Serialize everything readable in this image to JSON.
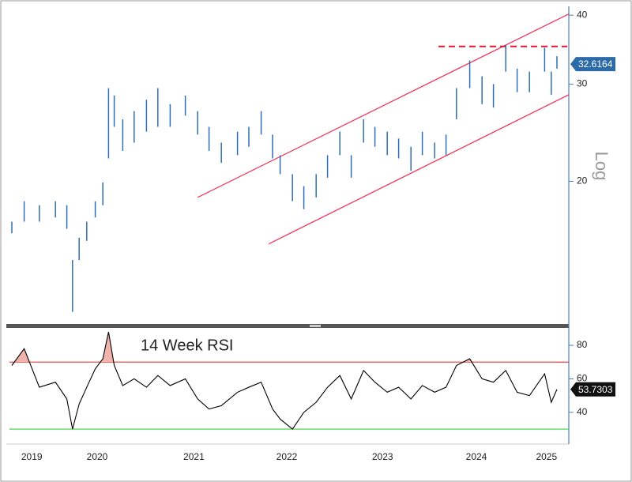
{
  "chart_data": [
    {
      "type": "range_bar",
      "y_scale": "log",
      "y_label": "Log",
      "x": [
        2019.6,
        2019.73,
        2019.89,
        2020.06,
        2020.18,
        2020.24,
        2020.31,
        2020.39,
        2020.48,
        2020.56,
        2020.62,
        2020.68,
        2020.77,
        2020.89,
        2021.02,
        2021.14,
        2021.27,
        2021.43,
        2021.56,
        2021.68,
        2021.81,
        2021.98,
        2022.1,
        2022.23,
        2022.35,
        2022.43,
        2022.56,
        2022.68,
        2022.81,
        2022.93,
        2023.06,
        2023.18,
        2023.31,
        2023.43,
        2023.56,
        2023.68,
        2023.81,
        2023.93,
        2024.06,
        2024.18,
        2024.29,
        2024.43,
        2024.56,
        2024.68,
        2024.81,
        2024.93,
        2025.06,
        2025.22,
        2025.29,
        2025.35
      ],
      "series": [
        {
          "color": "#2f6db5",
          "high": [
            16.9,
            18.4,
            18.1,
            18.4,
            18.1,
            14.4,
            15.8,
            16.9,
            18.4,
            19.9,
            29.5,
            28.6,
            25.9,
            26.8,
            28.1,
            29.5,
            27.6,
            28.6,
            26.8,
            25.1,
            23.5,
            24.6,
            25.1,
            26.8,
            24.3,
            22.3,
            20.6,
            19.6,
            20.6,
            22.3,
            24.6,
            22.3,
            25.9,
            25.1,
            24.6,
            23.9,
            23.1,
            24.6,
            23.5,
            24.3,
            29.5,
            33.1,
            31.0,
            30.0,
            35.3,
            32.0,
            31.6,
            34.9,
            31.6,
            33.7
          ],
          "low": [
            16.1,
            16.9,
            16.9,
            17.2,
            16.4,
            11.6,
            14.4,
            15.6,
            17.2,
            18.1,
            22.0,
            25.1,
            22.7,
            23.5,
            24.6,
            25.1,
            25.1,
            26.3,
            24.3,
            22.7,
            21.6,
            22.3,
            23.1,
            24.3,
            22.0,
            20.6,
            18.4,
            17.8,
            18.7,
            20.3,
            22.3,
            20.3,
            23.5,
            23.1,
            22.3,
            22.0,
            20.9,
            22.3,
            22.0,
            22.3,
            25.9,
            29.5,
            27.6,
            27.2,
            31.6,
            29.0,
            29.0,
            31.6,
            28.7,
            32.0
          ]
        }
      ],
      "last_value": 32.6164,
      "xlim": [
        2019.575,
        2025.475
      ],
      "ylim": [
        11.1,
        41.5
      ],
      "yticks": [
        20,
        30,
        40
      ],
      "lines": [
        {
          "color": "#f0385a",
          "dashed": false,
          "x": [
            2021.56,
            2025.475
          ],
          "y": [
            18.7,
            40.2
          ]
        },
        {
          "color": "#f0385a",
          "dashed": false,
          "x": [
            2022.31,
            2025.475
          ],
          "y": [
            15.4,
            28.7
          ]
        },
        {
          "color": "#e8152f",
          "dashed": true,
          "x": [
            2024.1,
            2025.46
          ],
          "y": [
            35.1,
            35.1
          ]
        }
      ]
    },
    {
      "type": "line",
      "title": "14 Week RSI",
      "x": [
        2019.6,
        2019.73,
        2019.89,
        2020.06,
        2020.18,
        2020.24,
        2020.31,
        2020.39,
        2020.48,
        2020.56,
        2020.62,
        2020.68,
        2020.77,
        2020.89,
        2021.02,
        2021.14,
        2021.27,
        2021.43,
        2021.56,
        2021.68,
        2021.81,
        2021.98,
        2022.1,
        2022.23,
        2022.35,
        2022.43,
        2022.56,
        2022.68,
        2022.81,
        2022.93,
        2023.06,
        2023.18,
        2023.31,
        2023.43,
        2023.56,
        2023.68,
        2023.81,
        2023.93,
        2024.06,
        2024.18,
        2024.29,
        2024.43,
        2024.56,
        2024.68,
        2024.81,
        2024.93,
        2025.06,
        2025.22,
        2025.29,
        2025.35
      ],
      "series": [
        {
          "color": "#000000",
          "values": [
            68,
            78,
            55,
            58,
            48,
            30,
            45,
            55,
            66,
            72,
            88,
            68,
            56,
            60,
            55,
            62,
            56,
            60,
            48,
            42,
            44,
            52,
            55,
            58,
            42,
            36,
            30,
            40,
            46,
            55,
            62,
            48,
            65,
            58,
            52,
            55,
            48,
            56,
            52,
            55,
            68,
            72,
            60,
            58,
            65,
            52,
            50,
            63,
            46,
            53.7303
          ]
        }
      ],
      "last_value": 53.7303,
      "xlim": [
        2019.575,
        2025.475
      ],
      "ylim": [
        22,
        89
      ],
      "yticks": [
        40,
        60,
        80
      ],
      "xticks": [
        {
          "value": 2019.81,
          "label": "2019"
        },
        {
          "value": 2020.5,
          "label": "2020"
        },
        {
          "value": 2021.52,
          "label": "2021"
        },
        {
          "value": 2022.5,
          "label": "2022"
        },
        {
          "value": 2023.51,
          "label": "2023"
        },
        {
          "value": 2024.5,
          "label": "2024"
        },
        {
          "value": 2025.24,
          "label": "2025"
        }
      ],
      "levels": [
        {
          "value": 70,
          "color": "#e8413c"
        },
        {
          "value": 30,
          "color": "#3fcf3f"
        }
      ],
      "fill_above_color": "#f2b3ad"
    }
  ]
}
